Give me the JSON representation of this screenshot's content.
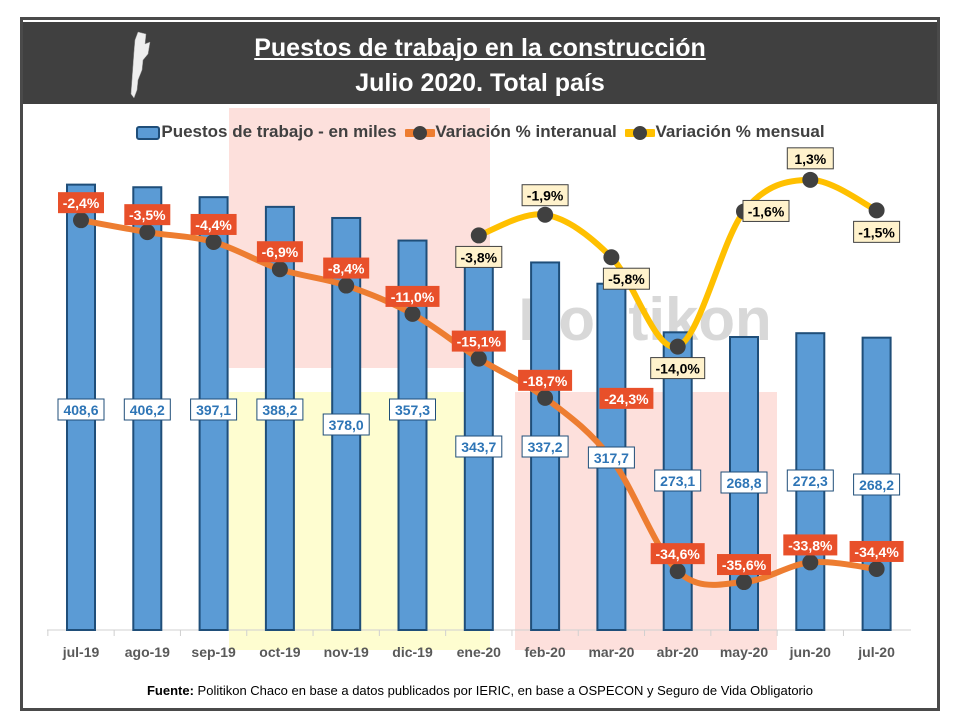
{
  "chart_data": {
    "type": "bar+line",
    "title": "Puestos de trabajo en la construcción",
    "subtitle": "Julio 2020. Total país",
    "categories": [
      "jul-19",
      "ago-19",
      "sep-19",
      "oct-19",
      "nov-19",
      "dic-19",
      "ene-20",
      "feb-20",
      "mar-20",
      "abr-20",
      "may-20",
      "jun-20",
      "jul-20"
    ],
    "series": [
      {
        "name": "Puestos de trabajo - en miles",
        "type": "bar",
        "color": "#5b9bd5",
        "values": [
          408.6,
          406.2,
          397.1,
          388.2,
          378.0,
          357.3,
          343.7,
          337.2,
          317.7,
          273.1,
          268.8,
          272.3,
          268.2
        ],
        "labels": [
          "408,6",
          "406,2",
          "397,1",
          "388,2",
          "378,0",
          "357,3",
          "343,7",
          "337,2",
          "317,7",
          "273,1",
          "268,8",
          "272,3",
          "268,2"
        ]
      },
      {
        "name": "Variación % interanual",
        "type": "line",
        "color": "#ed7d31",
        "values": [
          -2.4,
          -3.5,
          -4.4,
          -6.9,
          -8.4,
          -11.0,
          -15.1,
          -18.7,
          -24.3,
          -34.6,
          -35.6,
          -33.8,
          -34.4
        ],
        "labels": [
          "-2,4%",
          "-3,5%",
          "-4,4%",
          "-6,9%",
          "-8,4%",
          "-11,0%",
          "-15,1%",
          "-18,7%",
          "-24,3%",
          "-34,6%",
          "-35,6%",
          "-33,8%",
          "-34,4%"
        ]
      },
      {
        "name": "Variación % mensual",
        "type": "line",
        "color": "#ffc000",
        "values": [
          null,
          null,
          null,
          null,
          null,
          null,
          -3.8,
          -1.9,
          -5.8,
          -14.0,
          -1.6,
          1.3,
          -1.5
        ],
        "labels": [
          null,
          null,
          null,
          null,
          null,
          null,
          "-3,8%",
          "-1,9%",
          "-5,8%",
          "-14,0%",
          "-1,6%",
          "1,3%",
          "-1,5%"
        ]
      }
    ],
    "legend_position": "top",
    "grid": false
  },
  "watermark": "Politikon",
  "footer": {
    "bold": "Fuente:",
    "text": " Politikon Chaco en base a datos publicados por IERIC, en base a OSPECON y Seguro de Vida Obligatorio"
  }
}
